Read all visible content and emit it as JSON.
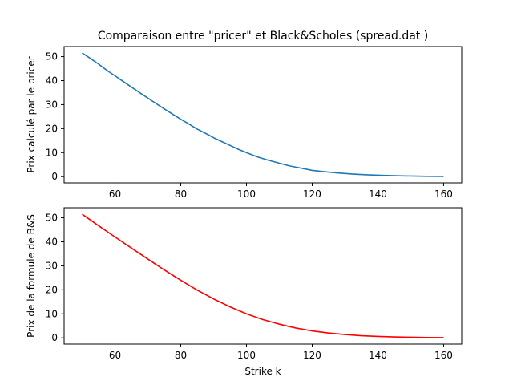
{
  "chart_data": [
    {
      "type": "line",
      "title": "Comparaison entre \"pricer\" et Black&Scholes (spread.dat )",
      "xlabel": "",
      "ylabel": "Prix calculé par le pricer",
      "xlim": [
        44.5,
        165.5
      ],
      "ylim": [
        -2.6,
        54.2
      ],
      "xticks": [
        60,
        80,
        100,
        120,
        140,
        160
      ],
      "yticks": [
        0,
        10,
        20,
        30,
        40,
        50
      ],
      "grid": false,
      "series": [
        {
          "color": "#1f77b4",
          "x": [
            50,
            52,
            55,
            58,
            60,
            62,
            65,
            68,
            70,
            72,
            75,
            78,
            80,
            82,
            85,
            88,
            90,
            92,
            95,
            98,
            100,
            103,
            106,
            110,
            113,
            116,
            120,
            124,
            128,
            132,
            136,
            140,
            145,
            150,
            155,
            160
          ],
          "y": [
            51.5,
            49.7,
            46.9,
            43.8,
            42.0,
            40.1,
            37.3,
            34.5,
            32.7,
            30.9,
            28.2,
            25.6,
            23.9,
            22.3,
            19.8,
            17.7,
            16.2,
            14.9,
            13.0,
            11.1,
            10.0,
            8.4,
            7.1,
            5.6,
            4.5,
            3.7,
            2.6,
            2.0,
            1.5,
            1.1,
            0.8,
            0.6,
            0.4,
            0.25,
            0.15,
            0.1
          ]
        }
      ]
    },
    {
      "type": "line",
      "title": "",
      "xlabel": "Strike k",
      "ylabel": "Prix de la formule de B&S",
      "xlim": [
        44.5,
        165.5
      ],
      "ylim": [
        -2.6,
        54.2
      ],
      "xticks": [
        60,
        80,
        100,
        120,
        140,
        160
      ],
      "yticks": [
        0,
        10,
        20,
        30,
        40,
        50
      ],
      "grid": false,
      "series": [
        {
          "color": "#ff0000",
          "x": [
            50,
            55,
            60,
            65,
            70,
            75,
            80,
            85,
            90,
            95,
            100,
            105,
            110,
            115,
            120,
            125,
            130,
            135,
            140,
            145,
            150,
            155,
            160
          ],
          "y": [
            51.5,
            46.7,
            42.0,
            37.4,
            32.8,
            28.3,
            24.0,
            19.9,
            16.2,
            12.9,
            10.0,
            7.6,
            5.7,
            4.1,
            2.9,
            2.0,
            1.4,
            0.9,
            0.6,
            0.4,
            0.25,
            0.15,
            0.1
          ]
        }
      ]
    }
  ]
}
